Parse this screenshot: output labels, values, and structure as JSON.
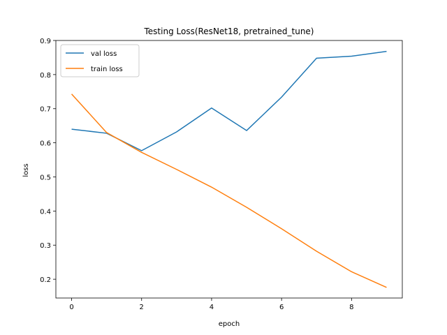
{
  "chart_data": {
    "type": "line",
    "title": "Testing Loss(ResNet18, pretrained_tune)",
    "xlabel": "epoch",
    "ylabel": "loss",
    "x": [
      0,
      1,
      2,
      3,
      4,
      5,
      6,
      7,
      8,
      9
    ],
    "xlim": [
      -0.45,
      9.45
    ],
    "ylim": [
      0.145,
      0.9
    ],
    "xticks": [
      0,
      2,
      4,
      6,
      8
    ],
    "yticks": [
      0.2,
      0.3,
      0.4,
      0.5,
      0.6,
      0.7,
      0.8,
      0.9
    ],
    "grid": false,
    "legend_position": "upper-left",
    "series": [
      {
        "name": "val loss",
        "color": "#1f77b4",
        "values": [
          0.64,
          0.628,
          0.577,
          0.632,
          0.702,
          0.636,
          0.734,
          0.848,
          0.854,
          0.868
        ]
      },
      {
        "name": "train loss",
        "color": "#ff7f0e",
        "values": [
          0.743,
          0.63,
          0.572,
          0.522,
          0.47,
          0.411,
          0.348,
          0.282,
          0.222,
          0.176
        ]
      }
    ]
  }
}
